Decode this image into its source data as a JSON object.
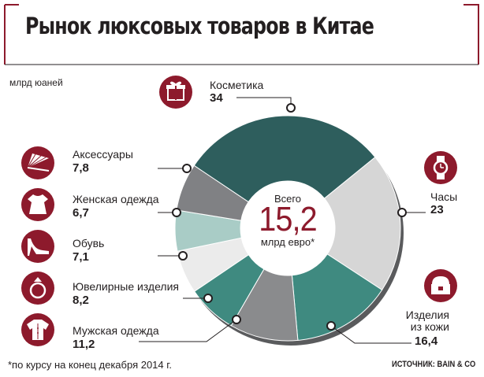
{
  "title": "Рынок люксовых товаров в Китае",
  "unit": "млрд юаней",
  "center": {
    "top": "Всего",
    "value": "15,2",
    "bottom": "млрд евро*"
  },
  "footnote": "*по курсу на конец декабря 2014 г.",
  "source": "ИСТОЧНИК: BAIN & CO",
  "colors": {
    "title_line": "#8d1a2c",
    "icon": "#8d1a2c",
    "cosmetics": "#2e5e5d",
    "watches": "#d6d6d6",
    "leather": "#3f8a80",
    "menswear": "#8a8b8d",
    "jewelry": "#3f8a80",
    "shoes": "#ebebeb",
    "womenswear": "#a9ccc6",
    "accessories": "#808184"
  },
  "chart_data": {
    "type": "pie",
    "donut": true,
    "unit": "млрд юаней",
    "series": [
      {
        "key": "cosmetics",
        "label": "Косметика",
        "value": 34,
        "display": "34",
        "icon": "gift-icon"
      },
      {
        "key": "watches",
        "label": "Часы",
        "value": 23,
        "display": "23",
        "icon": "watch-icon"
      },
      {
        "key": "leather",
        "label": "Изделия из кожи",
        "value": 16.4,
        "display": "16,4",
        "icon": "leather-bag-icon"
      },
      {
        "key": "menswear",
        "label": "Мужская одежда",
        "value": 11.2,
        "display": "11,2",
        "icon": "shirt-icon"
      },
      {
        "key": "jewelry",
        "label": "Ювелирные изделия",
        "value": 8.2,
        "display": "8,2",
        "icon": "ring-icon"
      },
      {
        "key": "shoes",
        "label": "Обувь",
        "value": 7.1,
        "display": "7,1",
        "icon": "high-heel-icon"
      },
      {
        "key": "womenswear",
        "label": "Женская одежда",
        "value": 6.7,
        "display": "6,7",
        "icon": "dress-icon"
      },
      {
        "key": "accessories",
        "label": "Аксессуары",
        "value": 7.8,
        "display": "7,8",
        "icon": "fan-icon"
      }
    ],
    "total": {
      "value": "15,2",
      "unit": "млрд евро*"
    }
  }
}
